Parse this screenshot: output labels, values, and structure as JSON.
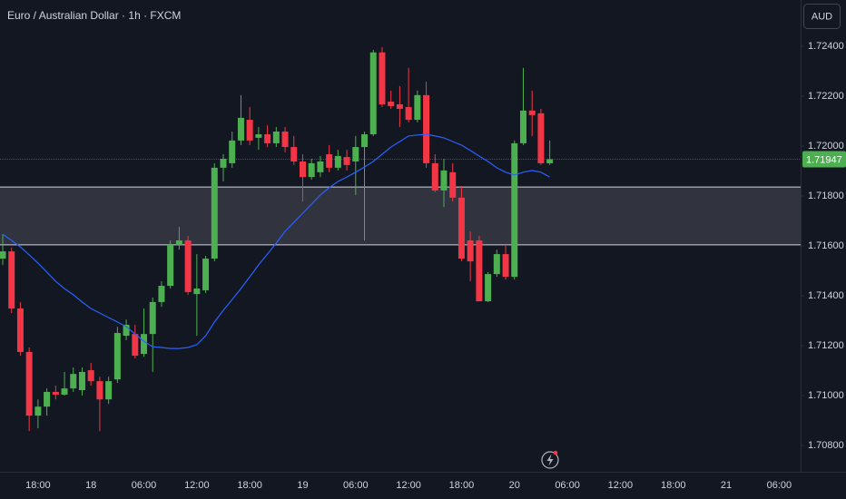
{
  "chart_data": {
    "type": "candlestick",
    "title": "Euro / Australian Dollar · 1h · FXCM",
    "currency": "AUD",
    "up_color": "#4caf50",
    "down_color": "#f23645",
    "grid": false,
    "categories": [
      null,
      null,
      null,
      null,
      "18:00",
      null,
      null,
      null,
      null,
      null,
      "18",
      null,
      null,
      null,
      null,
      null,
      "06:00",
      null,
      null,
      null,
      null,
      null,
      "12:00",
      null,
      null,
      null,
      null,
      null,
      "18:00",
      null,
      null,
      null,
      null,
      null,
      "19",
      null,
      null,
      null,
      null,
      null,
      "06:00",
      null,
      null,
      null,
      null,
      null,
      "12:00",
      null,
      null,
      null,
      null,
      null,
      "18:00",
      null,
      null,
      null,
      null,
      null,
      "20",
      null,
      null,
      null,
      null,
      null,
      "06:00",
      null,
      null,
      null,
      null,
      null,
      "12:00",
      null,
      null,
      null,
      null,
      null,
      "18:00",
      null,
      null,
      null,
      null,
      null,
      "21",
      null,
      null,
      null,
      null,
      null,
      "06:00",
      null
    ],
    "open": [
      1.71549,
      1.71578,
      1.71349,
      1.71175,
      1.7092,
      1.70956,
      1.71015,
      1.71004,
      1.71029,
      1.71022,
      1.71102,
      1.71058,
      1.70985,
      1.71065,
      1.7124,
      1.71247,
      1.71167,
      1.71247,
      1.71375,
      1.7144,
      1.71604,
      1.71622,
      1.71407,
      1.71422,
      1.71549,
      1.71913,
      1.71931,
      1.72022,
      1.72105,
      1.72033,
      1.72047,
      1.72011,
      1.72058,
      1.71996,
      1.71938,
      1.71876,
      1.71895,
      1.71967,
      1.71913,
      1.71956,
      1.71938,
      1.71996,
      1.72047,
      1.72375,
      1.72178,
      1.72167,
      1.72156,
      1.72105,
      1.72204,
      1.71931,
      1.71822,
      1.71895,
      1.71793,
      1.71622,
      1.71622,
      1.71378,
      1.71487,
      1.71567,
      1.71476,
      1.72011,
      1.72142,
      1.72131,
      1.71931,
      null,
      null,
      null,
      null,
      null,
      null,
      null,
      null,
      null,
      null,
      null,
      null,
      null,
      null,
      null,
      null,
      null,
      null,
      null,
      null,
      null,
      null,
      null,
      null,
      null,
      null,
      null
    ],
    "high": [
      1.71647,
      1.71593,
      1.71375,
      1.71193,
      1.70985,
      1.71029,
      1.7104,
      1.71095,
      1.71113,
      1.71113,
      1.71131,
      1.71076,
      1.71076,
      1.71276,
      1.71305,
      1.71284,
      1.71349,
      1.71393,
      1.71458,
      1.71622,
      1.71676,
      1.7164,
      1.71567,
      1.7156,
      1.71931,
      1.71967,
      1.72058,
      1.72204,
      1.72156,
      1.72076,
      1.72084,
      1.72076,
      1.72076,
      1.7204,
      1.71967,
      1.71949,
      1.7196,
      1.72004,
      1.71985,
      1.71985,
      1.7204,
      1.72058,
      1.72385,
      1.72396,
      1.72222,
      1.7224,
      1.72313,
      1.72222,
      1.72258,
      1.71967,
      1.71949,
      1.71931,
      1.7184,
      1.71658,
      1.7164,
      1.71495,
      1.71585,
      1.71604,
      1.72022,
      1.72313,
      1.72222,
      1.72149,
      1.72022,
      null,
      null,
      null,
      null,
      null,
      null,
      null,
      null,
      null,
      null,
      null,
      null,
      null,
      null,
      null,
      null,
      null,
      null,
      null,
      null,
      null,
      null,
      null,
      null,
      null,
      null,
      null
    ],
    "low": [
      1.71524,
      1.71331,
      1.7116,
      1.70858,
      1.70869,
      1.7092,
      1.70985,
      1.71,
      1.71015,
      1.71,
      1.7104,
      1.70858,
      1.70967,
      1.71051,
      1.71222,
      1.71149,
      1.71156,
      1.71095,
      1.71356,
      1.71429,
      1.71585,
      1.71404,
      1.7124,
      1.71411,
      1.71538,
      1.71858,
      1.71913,
      1.72004,
      1.72004,
      1.71985,
      1.71996,
      1.71996,
      1.71975,
      1.71924,
      1.71778,
      1.71865,
      1.71876,
      1.71895,
      1.71902,
      1.71902,
      1.71804,
      1.71622,
      1.7204,
      1.72156,
      1.72149,
      1.72076,
      1.72095,
      1.72095,
      1.71913,
      1.71815,
      1.71756,
      1.71778,
      1.71538,
      1.71458,
      1.71378,
      1.71375,
      1.71476,
      1.71465,
      1.71465,
      1.72004,
      1.7204,
      1.71924,
      1.71924,
      null,
      null,
      null,
      null,
      null,
      null,
      null,
      null,
      null,
      null,
      null,
      null,
      null,
      null,
      null,
      null,
      null,
      null,
      null,
      null,
      null,
      null,
      null,
      null,
      null,
      null,
      null
    ],
    "close": [
      1.71578,
      1.71349,
      1.71175,
      1.7092,
      1.70956,
      1.71015,
      1.71004,
      1.71029,
      1.71087,
      1.71095,
      1.71058,
      1.70985,
      1.71058,
      1.71251,
      1.71284,
      1.7116,
      1.71247,
      1.71375,
      1.7144,
      1.71604,
      1.71622,
      1.71415,
      1.71429,
      1.71549,
      1.71913,
      1.71949,
      1.72022,
      1.72113,
      1.72022,
      1.72047,
      1.72011,
      1.72058,
      1.71996,
      1.71938,
      1.71876,
      1.71931,
      1.71938,
      1.71913,
      1.7196,
      1.71924,
      1.71996,
      1.72047,
      1.72375,
      1.72167,
      1.7216,
      1.72149,
      1.72105,
      1.72204,
      1.71931,
      1.71822,
      1.71902,
      1.71793,
      1.71549,
      1.71538,
      1.71378,
      1.71487,
      1.71567,
      1.71476,
      1.72011,
      1.72142,
      1.72124,
      1.71931,
      1.71947,
      null,
      null,
      null,
      null,
      null,
      null,
      null,
      null,
      null,
      null,
      null,
      null,
      null,
      null,
      null,
      null,
      null,
      null,
      null,
      null,
      null,
      null,
      null,
      null,
      null,
      null,
      null
    ],
    "moving_average": {
      "color": "#2962ff",
      "values": [
        1.71647,
        1.71622,
        1.71596,
        1.71564,
        1.71531,
        1.71495,
        1.71458,
        1.71429,
        1.71404,
        1.71375,
        1.71349,
        1.71331,
        1.71313,
        1.71295,
        1.71276,
        1.71247,
        1.71218,
        1.71196,
        1.71193,
        1.71189,
        1.71189,
        1.71193,
        1.71204,
        1.7124,
        1.71295,
        1.71342,
        1.71385,
        1.71429,
        1.71476,
        1.71524,
        1.71567,
        1.71611,
        1.71658,
        1.71695,
        1.71731,
        1.71767,
        1.71804,
        1.71833,
        1.71858,
        1.71876,
        1.71895,
        1.71916,
        1.71938,
        1.71967,
        1.71996,
        1.72018,
        1.7204,
        1.72044,
        1.72047,
        1.7204,
        1.72033,
        1.72018,
        1.72004,
        1.71982,
        1.7196,
        1.71938,
        1.71913,
        1.71895,
        1.71884,
        1.71895,
        1.71902,
        1.71895,
        1.71876,
        null,
        null,
        null,
        null,
        null,
        null,
        null,
        null,
        null,
        null,
        null,
        null,
        null,
        null,
        null,
        null,
        null,
        null,
        null,
        null,
        null,
        null,
        null,
        null,
        null,
        null,
        null
      ]
    },
    "zone": {
      "color": "#4a4a55",
      "range": [
        1.71604,
        1.71836
      ]
    },
    "last_price": 1.71947,
    "ylim": [
      1.70695,
      1.72585
    ],
    "yticks": [
      {
        "value": 1.708,
        "label": "1.70800"
      },
      {
        "value": 1.71,
        "label": "1.71000"
      },
      {
        "value": 1.712,
        "label": "1.71200"
      },
      {
        "value": 1.714,
        "label": "1.71400"
      },
      {
        "value": 1.716,
        "label": "1.71600"
      },
      {
        "value": 1.718,
        "label": "1.71800"
      },
      {
        "value": 1.72,
        "label": "1.72000"
      },
      {
        "value": 1.722,
        "label": "1.72200"
      },
      {
        "value": 1.724,
        "label": "1.72400"
      }
    ]
  }
}
